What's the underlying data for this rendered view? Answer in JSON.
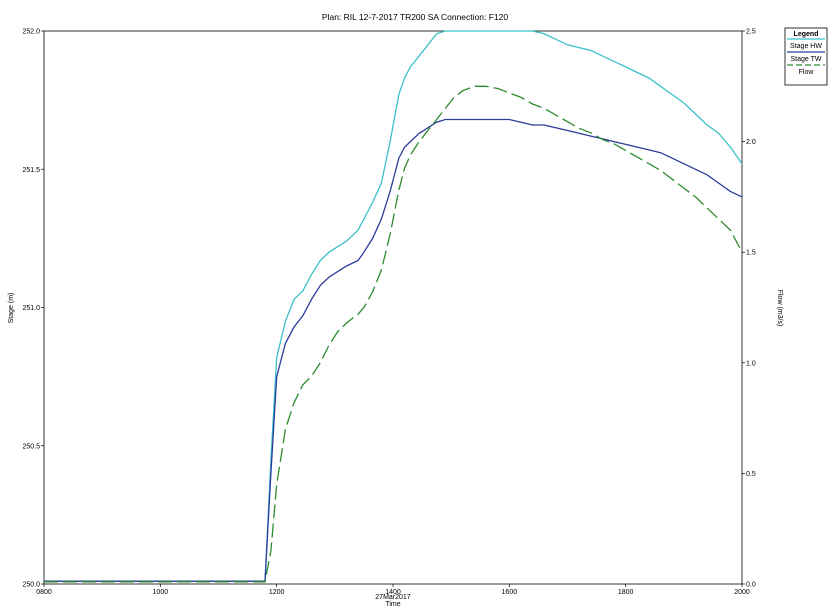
{
  "chart_data": {
    "type": "line",
    "title": "Plan: RIL 12-7-2017 TR200    SA Connection: F120",
    "xlabel_date": "27Mar2017",
    "xlabel": "Time",
    "ylabel_left": "Stage (m)",
    "ylabel_right": "Flow (m3/s)",
    "xlim": [
      800,
      2000
    ],
    "ylim_left": [
      250.0,
      252.0
    ],
    "ylim_right": [
      0.0,
      2.5
    ],
    "x_ticks": [
      "0800",
      "1000",
      "1200",
      "1400",
      "1600",
      "1800",
      "2000"
    ],
    "y_left_ticks": [
      "250.0",
      "250.5",
      "251.0",
      "251.5",
      "252.0"
    ],
    "y_right_ticks": [
      "0.0",
      "0.5",
      "1.0",
      "1.5",
      "2.0",
      "2.5"
    ],
    "grid": false,
    "legend": {
      "title": "Legend",
      "position": "right"
    },
    "colors": {
      "stage_hw": "#3cc0c8",
      "stage_tw": "#2c3c9c",
      "flow": "#2e8b2e"
    },
    "series": [
      {
        "name": "Stage HW",
        "axis": "left",
        "style": "solid",
        "x": [
          800,
          1180,
          1190,
          1200,
          1215,
          1230,
          1245,
          1260,
          1275,
          1290,
          1305,
          1320,
          1340,
          1350,
          1365,
          1380,
          1395,
          1410,
          1420,
          1430,
          1445,
          1460,
          1475,
          1490,
          1505,
          1520,
          1540,
          1560,
          1580,
          1600,
          1620,
          1640,
          1660,
          1680,
          1700,
          1720,
          1740,
          1760,
          1780,
          1800,
          1820,
          1840,
          1860,
          1880,
          1900,
          1920,
          1940,
          1960,
          1980,
          2000
        ],
        "y": [
          250.01,
          250.01,
          250.45,
          250.82,
          250.95,
          251.03,
          251.06,
          251.12,
          251.17,
          251.2,
          251.22,
          251.24,
          251.28,
          251.32,
          251.38,
          251.45,
          251.6,
          251.77,
          251.83,
          251.87,
          251.91,
          251.95,
          251.99,
          252.02,
          252.04,
          252.05,
          252.05,
          252.05,
          252.04,
          252.03,
          252.02,
          252.01,
          251.99,
          251.97,
          251.95,
          251.94,
          251.93,
          251.91,
          251.89,
          251.87,
          251.85,
          251.83,
          251.8,
          251.77,
          251.74,
          251.7,
          251.66,
          251.63,
          251.58,
          251.52
        ]
      },
      {
        "name": "Stage TW",
        "axis": "left",
        "style": "solid",
        "x": [
          800,
          1180,
          1190,
          1200,
          1215,
          1230,
          1245,
          1260,
          1275,
          1290,
          1305,
          1320,
          1340,
          1350,
          1365,
          1380,
          1395,
          1410,
          1420,
          1430,
          1445,
          1460,
          1475,
          1490,
          1505,
          1520,
          1540,
          1560,
          1580,
          1600,
          1620,
          1640,
          1660,
          1680,
          1700,
          1720,
          1740,
          1760,
          1780,
          1800,
          1820,
          1840,
          1860,
          1880,
          1900,
          1920,
          1940,
          1960,
          1980,
          2000
        ],
        "y": [
          250.01,
          250.01,
          250.4,
          250.75,
          250.87,
          250.93,
          250.97,
          251.03,
          251.08,
          251.11,
          251.13,
          251.15,
          251.17,
          251.2,
          251.25,
          251.32,
          251.42,
          251.54,
          251.58,
          251.6,
          251.63,
          251.65,
          251.67,
          251.68,
          251.68,
          251.68,
          251.68,
          251.68,
          251.68,
          251.68,
          251.67,
          251.66,
          251.66,
          251.65,
          251.64,
          251.63,
          251.62,
          251.61,
          251.6,
          251.59,
          251.58,
          251.57,
          251.56,
          251.54,
          251.52,
          251.5,
          251.48,
          251.45,
          251.42,
          251.4
        ]
      },
      {
        "name": "Flow",
        "axis": "right",
        "style": "dashed",
        "x": [
          800,
          1180,
          1190,
          1200,
          1215,
          1230,
          1245,
          1260,
          1275,
          1290,
          1305,
          1320,
          1340,
          1350,
          1365,
          1380,
          1395,
          1410,
          1420,
          1430,
          1445,
          1460,
          1475,
          1490,
          1505,
          1520,
          1540,
          1560,
          1580,
          1600,
          1620,
          1640,
          1660,
          1680,
          1700,
          1720,
          1740,
          1760,
          1780,
          1800,
          1820,
          1840,
          1860,
          1880,
          1900,
          1920,
          1940,
          1960,
          1980,
          2000
        ],
        "y": [
          0.01,
          0.01,
          0.15,
          0.45,
          0.7,
          0.82,
          0.9,
          0.94,
          1.0,
          1.08,
          1.14,
          1.18,
          1.22,
          1.25,
          1.32,
          1.42,
          1.58,
          1.78,
          1.88,
          1.94,
          2.0,
          2.05,
          2.1,
          2.15,
          2.2,
          2.23,
          2.25,
          2.25,
          2.24,
          2.22,
          2.2,
          2.17,
          2.15,
          2.12,
          2.09,
          2.06,
          2.04,
          2.01,
          1.99,
          1.96,
          1.93,
          1.9,
          1.87,
          1.83,
          1.79,
          1.75,
          1.7,
          1.65,
          1.6,
          1.5
        ]
      }
    ]
  }
}
